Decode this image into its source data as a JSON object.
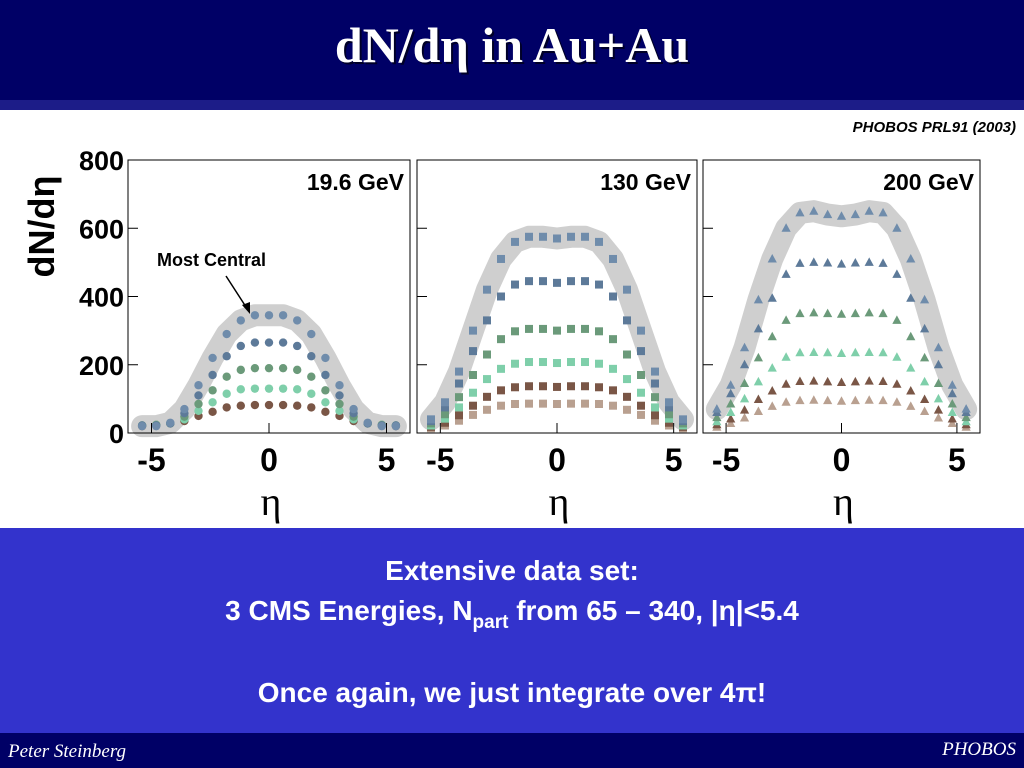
{
  "slide": {
    "title": "dN/dη in Au+Au",
    "citation": "PHOBOS PRL91 (2003)",
    "box": {
      "line1": "Extensive data set:",
      "line2a": "3 CMS Energies, N",
      "line2sub": "part",
      "line2b": " from 65 – 340, |η|<5.4",
      "line3": "Once again, we just integrate over 4π!"
    },
    "footer_left": "Peter Steinberg",
    "footer_right": "PHOBOS"
  },
  "chart_data": [
    {
      "type": "scatter",
      "marker": "circle",
      "title": "19.6 GeV",
      "xlabel": "η",
      "ylabel": "dN/dη",
      "annotation": "Most Central",
      "ytick_labels": true,
      "xlim": [
        -6,
        6
      ],
      "ylim": [
        0,
        800
      ],
      "xticks": [
        -5,
        0,
        5
      ],
      "yticks": [
        0,
        200,
        400,
        600,
        800
      ],
      "x": [
        -5.4,
        -4.8,
        -4.2,
        -3.6,
        -3.0,
        -2.4,
        -1.8,
        -1.2,
        -0.6,
        0,
        0.6,
        1.2,
        1.8,
        2.4,
        3.0,
        3.6,
        4.2,
        4.8,
        5.4
      ],
      "series": [
        {
          "color": "#6f8cab",
          "values": [
            20,
            20,
            30,
            70,
            140,
            220,
            290,
            330,
            345,
            345,
            345,
            330,
            290,
            220,
            140,
            70,
            30,
            20,
            20
          ]
        },
        {
          "color": "#5d7a99",
          "values": [
            22,
            22,
            28,
            58,
            110,
            170,
            225,
            255,
            265,
            265,
            265,
            255,
            225,
            170,
            110,
            58,
            28,
            22,
            22
          ]
        },
        {
          "color": "#6b9a7a",
          "values": [
            22,
            23,
            28,
            48,
            85,
            125,
            165,
            185,
            190,
            190,
            190,
            185,
            165,
            125,
            85,
            48,
            28,
            23,
            22
          ]
        },
        {
          "color": "#7fcfaa",
          "values": [
            22,
            24,
            28,
            40,
            65,
            90,
            115,
            128,
            130,
            130,
            130,
            128,
            115,
            90,
            65,
            40,
            28,
            24,
            22
          ]
        },
        {
          "color": "#7a5646",
          "values": [
            20,
            24,
            28,
            35,
            50,
            62,
            75,
            80,
            82,
            82,
            82,
            80,
            75,
            62,
            50,
            35,
            28,
            24,
            20
          ]
        }
      ]
    },
    {
      "type": "scatter",
      "marker": "square",
      "title": "130 GeV",
      "xlabel": "η",
      "ytick_labels": false,
      "xlim": [
        -6,
        6
      ],
      "ylim": [
        0,
        800
      ],
      "xticks": [
        -5,
        0,
        5
      ],
      "yticks": [
        0,
        200,
        400,
        600,
        800
      ],
      "x": [
        -5.4,
        -4.8,
        -4.2,
        -3.6,
        -3.0,
        -2.4,
        -1.8,
        -1.2,
        -0.6,
        0,
        0.6,
        1.2,
        1.8,
        2.4,
        3.0,
        3.6,
        4.2,
        4.8,
        5.4
      ],
      "series": [
        {
          "color": "#6f8cab",
          "values": [
            40,
            90,
            180,
            300,
            420,
            510,
            560,
            575,
            575,
            570,
            575,
            575,
            560,
            510,
            420,
            300,
            180,
            90,
            40
          ]
        },
        {
          "color": "#5d7a99",
          "values": [
            35,
            75,
            145,
            240,
            330,
            400,
            435,
            445,
            445,
            440,
            445,
            445,
            435,
            400,
            330,
            240,
            145,
            75,
            35
          ]
        },
        {
          "color": "#6b9a7a",
          "values": [
            28,
            55,
            105,
            170,
            230,
            275,
            298,
            305,
            305,
            300,
            305,
            305,
            298,
            275,
            230,
            170,
            105,
            55,
            28
          ]
        },
        {
          "color": "#7fcfaa",
          "values": [
            22,
            42,
            75,
            118,
            158,
            188,
            203,
            208,
            208,
            205,
            208,
            208,
            203,
            188,
            158,
            118,
            75,
            42,
            22
          ]
        },
        {
          "color": "#7a5646",
          "values": [
            18,
            30,
            52,
            80,
            106,
            125,
            134,
            137,
            137,
            135,
            137,
            137,
            134,
            125,
            106,
            80,
            52,
            30,
            18
          ]
        },
        {
          "color": "#b9a090",
          "values": [
            14,
            22,
            36,
            53,
            68,
            80,
            85,
            86,
            86,
            85,
            86,
            86,
            85,
            80,
            68,
            53,
            36,
            22,
            14
          ]
        }
      ]
    },
    {
      "type": "scatter",
      "marker": "triangle",
      "title": "200 GeV",
      "xlabel": "η",
      "ytick_labels": false,
      "xlim": [
        -6,
        6
      ],
      "ylim": [
        0,
        800
      ],
      "xticks": [
        -5,
        0,
        5
      ],
      "yticks": [
        0,
        200,
        400,
        600,
        800
      ],
      "x": [
        -5.4,
        -4.8,
        -4.2,
        -3.6,
        -3.0,
        -2.4,
        -1.8,
        -1.2,
        -0.6,
        0,
        0.6,
        1.2,
        1.8,
        2.4,
        3.0,
        3.6,
        4.2,
        4.8,
        5.4
      ],
      "series": [
        {
          "color": "#6f8cab",
          "values": [
            70,
            140,
            250,
            390,
            510,
            600,
            645,
            650,
            640,
            635,
            640,
            650,
            645,
            600,
            510,
            390,
            250,
            140,
            70
          ]
        },
        {
          "color": "#5d7a99",
          "values": [
            60,
            115,
            200,
            305,
            395,
            465,
            497,
            500,
            498,
            495,
            498,
            500,
            497,
            465,
            395,
            305,
            200,
            115,
            60
          ]
        },
        {
          "color": "#6b9a7a",
          "values": [
            45,
            85,
            145,
            220,
            282,
            330,
            350,
            352,
            350,
            348,
            350,
            352,
            350,
            330,
            282,
            220,
            145,
            85,
            45
          ]
        },
        {
          "color": "#7fcfaa",
          "values": [
            33,
            60,
            100,
            150,
            190,
            222,
            235,
            236,
            235,
            233,
            235,
            236,
            235,
            222,
            190,
            150,
            100,
            60,
            33
          ]
        },
        {
          "color": "#7a5646",
          "values": [
            24,
            41,
            67,
            98,
            123,
            143,
            151,
            152,
            150,
            148,
            150,
            152,
            151,
            143,
            123,
            98,
            67,
            41,
            24
          ]
        },
        {
          "color": "#b9a090",
          "values": [
            17,
            28,
            44,
            63,
            78,
            90,
            95,
            96,
            95,
            93,
            95,
            96,
            95,
            90,
            78,
            63,
            44,
            28,
            17
          ]
        }
      ]
    }
  ]
}
